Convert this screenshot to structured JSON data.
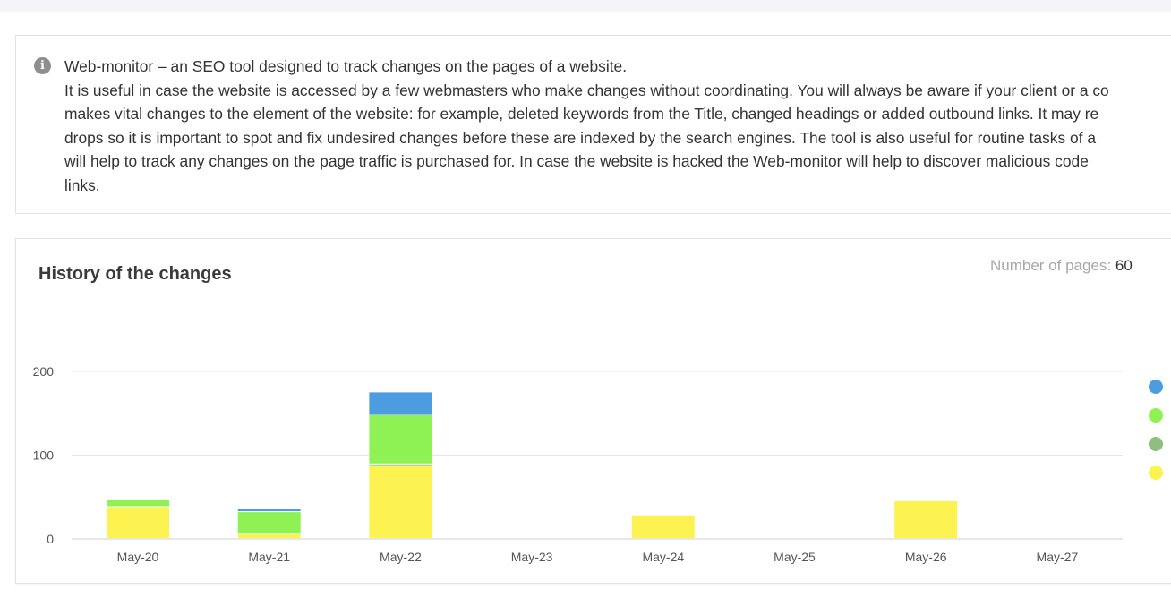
{
  "info": {
    "icon": "info-icon",
    "lines": [
      "Web-monitor – an SEO tool designed to track changes on the pages of a website.",
      "It is useful in case the website is accessed by a few webmasters who make changes without coordinating. You will always be aware if your client or a co",
      "makes vital changes to the element of the website: for example, deleted keywords from the Title, changed headings or added outbound links. It may re",
      "drops so it is important to spot and fix undesired changes before these are indexed by the search engines. The tool is also useful for routine tasks of a",
      "will help to track any changes on the page traffic is purchased for. In case the website is hacked the Web-monitor will help to discover malicious code",
      "links."
    ]
  },
  "card": {
    "title": "History of the changes",
    "pages_label": "Number of pages:",
    "pages_value": "60"
  },
  "chart_data": {
    "type": "bar",
    "stacked": true,
    "categories": [
      "May-20",
      "May-21",
      "May-22",
      "May-23",
      "May-24",
      "May-25",
      "May-26",
      "May-27"
    ],
    "series": [
      {
        "name": "yellow",
        "color": "#fdf350",
        "values": [
          38,
          6,
          87,
          0,
          28,
          0,
          45,
          0
        ]
      },
      {
        "name": "gray-green",
        "color": "#8fbf7f",
        "values": [
          0,
          0,
          2,
          0,
          0,
          0,
          0,
          0
        ]
      },
      {
        "name": "green",
        "color": "#8ef255",
        "values": [
          8,
          26,
          59,
          0,
          0,
          0,
          0,
          0
        ]
      },
      {
        "name": "blue",
        "color": "#4c9de0",
        "values": [
          0,
          4,
          27,
          0,
          0,
          0,
          0,
          0
        ]
      }
    ],
    "legend_order": [
      "blue",
      "green",
      "gray-green",
      "yellow"
    ],
    "yticks": [
      0,
      100,
      200
    ],
    "ylim": [
      0,
      200
    ],
    "grid": true,
    "legend_position": "right"
  }
}
